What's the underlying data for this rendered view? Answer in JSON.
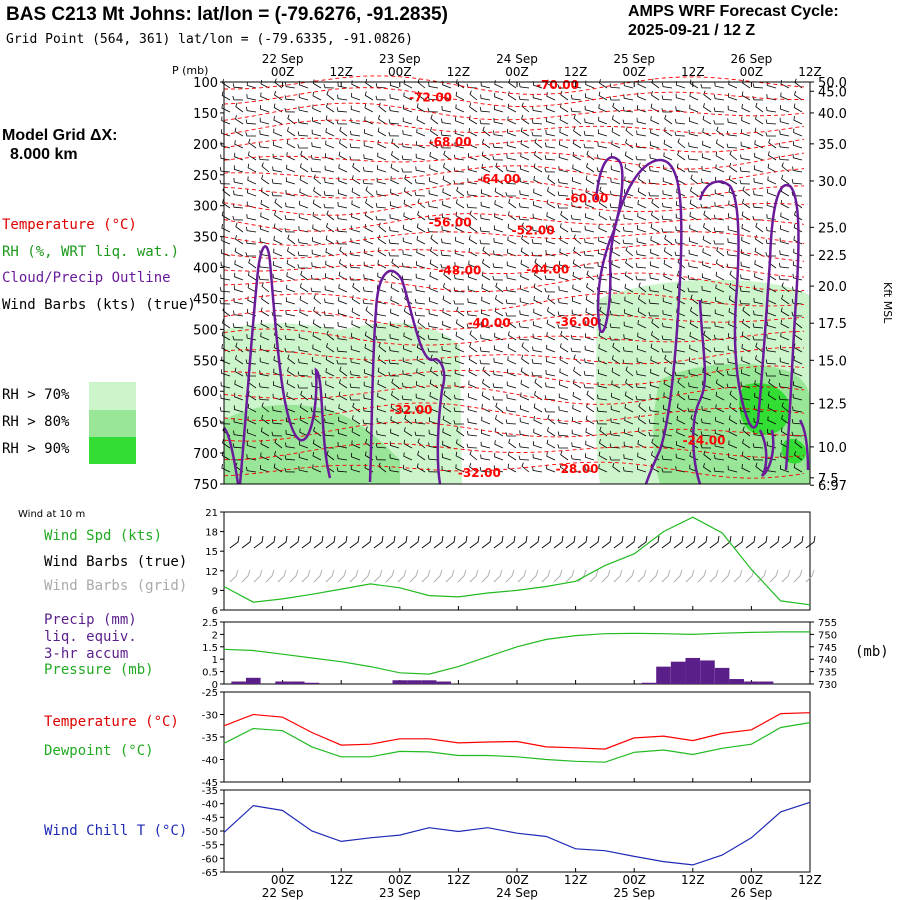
{
  "header": {
    "title": "BAS C213 Mt Johns:  lat/lon = (-79.6276, -91.2835)",
    "subtitle": "Grid Point (564, 361) lat/lon = (-79.6335, -91.0826)",
    "cycle_line1": "AMPS WRF Forecast Cycle:",
    "cycle_line2": "2025-09-21 / 12  Z",
    "grid_dx_line1": "Model Grid ΔX:",
    "grid_dx_line2": "8.000 km"
  },
  "time_axis": {
    "hour_labels": [
      "00Z",
      "12Z",
      "00Z",
      "12Z",
      "00Z",
      "12Z",
      "00Z",
      "12Z",
      "00Z",
      "12Z"
    ],
    "date_labels": [
      "22 Sep",
      "23 Sep",
      "24 Sep",
      "25 Sep",
      "26 Sep"
    ],
    "pressure_axis_label": "P (mb)"
  },
  "legend": {
    "temperature": "Temperature (°C)",
    "rh": "RH (%, WRT liq. wat.)",
    "cloud": "Cloud/Precip Outline",
    "wind_barbs": "Wind Barbs (kts) (true)",
    "rh70": "RH > 70%",
    "rh80": "RH > 80%",
    "rh90": "RH > 90%",
    "kft_label": "Kft MSL",
    "wind10m": "Wind at 10 m",
    "wind_spd": "Wind Spd (kts)",
    "wind_barbs_true": "Wind Barbs (true)",
    "wind_barbs_grid": "Wind Barbs (grid)",
    "precip1": "Precip (mm)",
    "precip2": "liq. equiv.",
    "precip3": "3-hr accum",
    "pressure": "Pressure (mb)",
    "mb_unit": "(mb)",
    "temp_panel": "Temperature (°C)",
    "dewpoint": "Dewpoint (°C)",
    "wind_chill": "Wind Chill T (°C)"
  },
  "colors": {
    "temperature": "#ff0000",
    "rh70": "#ccf5cc",
    "rh80": "#99e699",
    "rh90": "#33dd33",
    "cloud": "#6a1b9a",
    "wind_spd": "#22bb22",
    "pressure": "#22bb22",
    "dewpoint": "#22bb22",
    "precip": "#5b1f8a",
    "wind_chill": "#1f2ab5",
    "grid_barbs": "#aaaaaa"
  },
  "chart_data": [
    {
      "type": "cross-section",
      "title": "",
      "ylabel": "P (mb)",
      "y_ticks": [
        100,
        150,
        200,
        250,
        300,
        350,
        400,
        450,
        500,
        550,
        600,
        650,
        700,
        750
      ],
      "ylim": [
        750,
        100
      ],
      "right_axis": {
        "label": "Kft MSL",
        "ticks": [
          "50.0",
          "45.0",
          "40.0",
          "35.0",
          "30.0",
          "25.0",
          "22.5",
          "20.0",
          "17.5",
          "15.0",
          "12.5",
          "10.0",
          "7.5",
          "6.97"
        ],
        "pressure_positions": [
          100,
          115,
          150,
          200,
          260,
          335,
          380,
          430,
          490,
          550,
          620,
          690,
          740,
          752
        ]
      },
      "x_range_hours": [
        -12,
        108
      ],
      "temperature_labels": [
        {
          "hour": 56,
          "p": 105,
          "text": "-70.00"
        },
        {
          "hour": 30,
          "p": 125,
          "text": "-72.00"
        },
        {
          "hour": 34,
          "p": 197,
          "text": "-68.00"
        },
        {
          "hour": 44,
          "p": 257,
          "text": "-64.00"
        },
        {
          "hour": 62,
          "p": 288,
          "text": "-60.00"
        },
        {
          "hour": 34,
          "p": 327,
          "text": "-56.00"
        },
        {
          "hour": 51,
          "p": 340,
          "text": "-52.00"
        },
        {
          "hour": 36,
          "p": 405,
          "text": "-48.00"
        },
        {
          "hour": 54,
          "p": 403,
          "text": "-44.00"
        },
        {
          "hour": 42,
          "p": 490,
          "text": "-40.00"
        },
        {
          "hour": 60,
          "p": 488,
          "text": "-36.00"
        },
        {
          "hour": 26,
          "p": 630,
          "text": "-32.00"
        },
        {
          "hour": 40,
          "p": 732,
          "text": "-32.00"
        },
        {
          "hour": 60,
          "p": 726,
          "text": "-28.00"
        },
        {
          "hour": 86,
          "p": 680,
          "text": "-24.00"
        }
      ]
    },
    {
      "type": "line",
      "title": "Wind at 10 m",
      "ylabel": "Wind Spd (kts)",
      "y_ticks": [
        6,
        9,
        12,
        15,
        18,
        21
      ],
      "ylim": [
        6,
        21
      ],
      "x_hours": [
        -12,
        -6,
        0,
        6,
        12,
        18,
        24,
        30,
        36,
        42,
        48,
        54,
        60,
        66,
        72,
        78,
        84,
        90,
        96,
        102,
        108
      ],
      "series": [
        {
          "name": "Wind Spd (kts)",
          "values": [
            9.6,
            7.2,
            7.7,
            8.4,
            9.2,
            10.0,
            9.4,
            8.2,
            8.0,
            8.6,
            9.0,
            9.6,
            10.4,
            12.8,
            14.6,
            18.0,
            20.2,
            17.8,
            12.2,
            7.4,
            6.8
          ]
        }
      ]
    },
    {
      "type": "bar+line",
      "ylabel": "Precip (mm)",
      "y_ticks": [
        0,
        0.5,
        1,
        1.5,
        2,
        2.5
      ],
      "ylim": [
        0,
        2.5
      ],
      "right_axis": {
        "label": "(mb)",
        "ticks": [
          730,
          735,
          740,
          745,
          750,
          755
        ],
        "ylim": [
          730,
          755
        ]
      },
      "x_hours": [
        -12,
        -6,
        0,
        6,
        12,
        18,
        24,
        30,
        36,
        42,
        48,
        54,
        60,
        66,
        72,
        78,
        84,
        90,
        96,
        102,
        108
      ],
      "pressure": [
        744,
        743.5,
        742,
        740.5,
        739,
        737,
        734.5,
        734,
        737,
        741,
        745,
        748,
        749.5,
        750.3,
        750.4,
        750.3,
        750,
        750.5,
        750.8,
        751,
        751
      ],
      "precip_bars": [
        {
          "hour": -9,
          "value": 0.1
        },
        {
          "hour": -6,
          "value": 0.25
        },
        {
          "hour": 0,
          "value": 0.1
        },
        {
          "hour": 3,
          "value": 0.1
        },
        {
          "hour": 6,
          "value": 0.05
        },
        {
          "hour": 24,
          "value": 0.15
        },
        {
          "hour": 27,
          "value": 0.15
        },
        {
          "hour": 30,
          "value": 0.15
        },
        {
          "hour": 33,
          "value": 0.1
        },
        {
          "hour": 75,
          "value": 0.05
        },
        {
          "hour": 78,
          "value": 0.7
        },
        {
          "hour": 81,
          "value": 0.9
        },
        {
          "hour": 84,
          "value": 1.05
        },
        {
          "hour": 87,
          "value": 0.95
        },
        {
          "hour": 90,
          "value": 0.65
        },
        {
          "hour": 93,
          "value": 0.2
        },
        {
          "hour": 96,
          "value": 0.1
        },
        {
          "hour": 99,
          "value": 0.1
        }
      ]
    },
    {
      "type": "line",
      "y_ticks": [
        -45,
        -40,
        -35,
        -30,
        -25
      ],
      "ylim": [
        -45,
        -25
      ],
      "x_hours": [
        -12,
        -6,
        0,
        6,
        12,
        18,
        24,
        30,
        36,
        42,
        48,
        54,
        60,
        66,
        72,
        78,
        84,
        90,
        96,
        102,
        108
      ],
      "series": [
        {
          "name": "Temperature (°C)",
          "values": [
            -32.5,
            -30.0,
            -30.6,
            -34.0,
            -36.8,
            -36.6,
            -35.4,
            -35.4,
            -36.3,
            -36.1,
            -36.0,
            -37.2,
            -37.4,
            -37.7,
            -35.2,
            -34.8,
            -35.8,
            -34.2,
            -33.4,
            -29.8,
            -29.6
          ]
        },
        {
          "name": "Dewpoint (°C)",
          "values": [
            -36.4,
            -33.1,
            -33.6,
            -37.2,
            -39.4,
            -39.4,
            -38.2,
            -38.3,
            -39.1,
            -39.1,
            -39.4,
            -40.0,
            -40.4,
            -40.6,
            -38.4,
            -37.9,
            -38.9,
            -37.5,
            -36.6,
            -32.9,
            -31.8
          ]
        }
      ]
    },
    {
      "type": "line",
      "ylabel": "Wind Chill T (°C)",
      "y_ticks": [
        -65,
        -60,
        -55,
        -50,
        -45,
        -40,
        -35
      ],
      "ylim": [
        -65,
        -35
      ],
      "x_hours": [
        -12,
        -6,
        0,
        6,
        12,
        18,
        24,
        30,
        36,
        42,
        48,
        54,
        60,
        66,
        72,
        78,
        84,
        90,
        96,
        102,
        108
      ],
      "series": [
        {
          "name": "Wind Chill T (°C)",
          "values": [
            -50.5,
            -40.7,
            -42.5,
            -50.0,
            -53.8,
            -52.5,
            -51.5,
            -48.8,
            -50.2,
            -48.8,
            -50.8,
            -52.0,
            -56.5,
            -57.2,
            -59.3,
            -61.2,
            -62.4,
            -58.8,
            -52.5,
            -43.0,
            -39.5
          ]
        }
      ]
    }
  ]
}
